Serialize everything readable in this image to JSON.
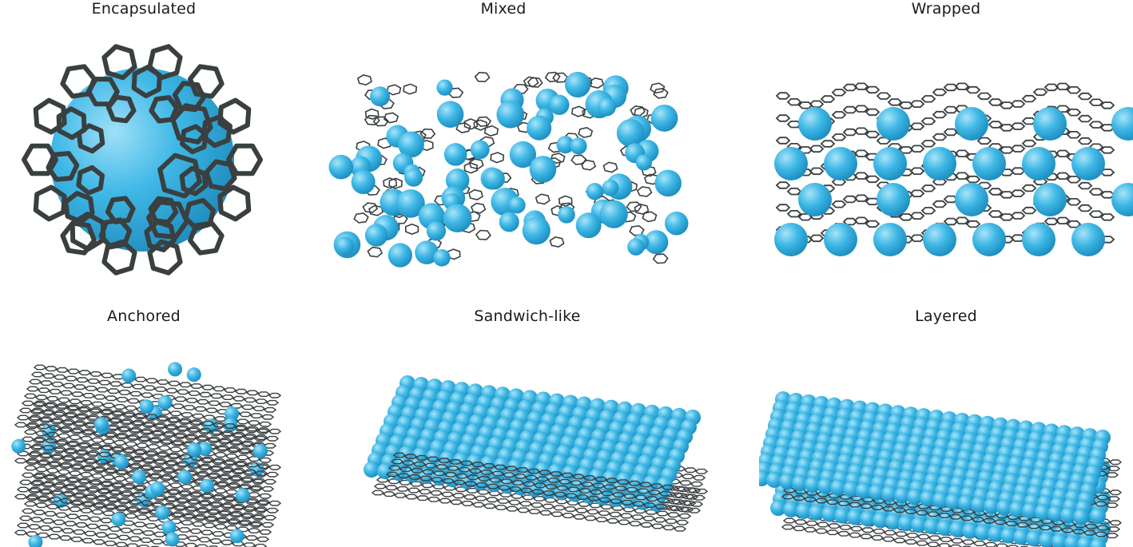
{
  "panels": [
    {
      "key": "encapsulated",
      "label": "Encapsulated"
    },
    {
      "key": "mixed",
      "label": "Mixed"
    },
    {
      "key": "wrapped",
      "label": "Wrapped"
    },
    {
      "key": "anchored",
      "label": "Anchored"
    },
    {
      "key": "sandwich",
      "label": "Sandwich-like"
    },
    {
      "key": "layered",
      "label": "Layered"
    }
  ],
  "colors": {
    "sphere": "#3fb8e6",
    "sphere_highlight": "#a9e4f8",
    "sphere_shadow": "#1d8fc0",
    "lattice": "#3a3f40"
  }
}
